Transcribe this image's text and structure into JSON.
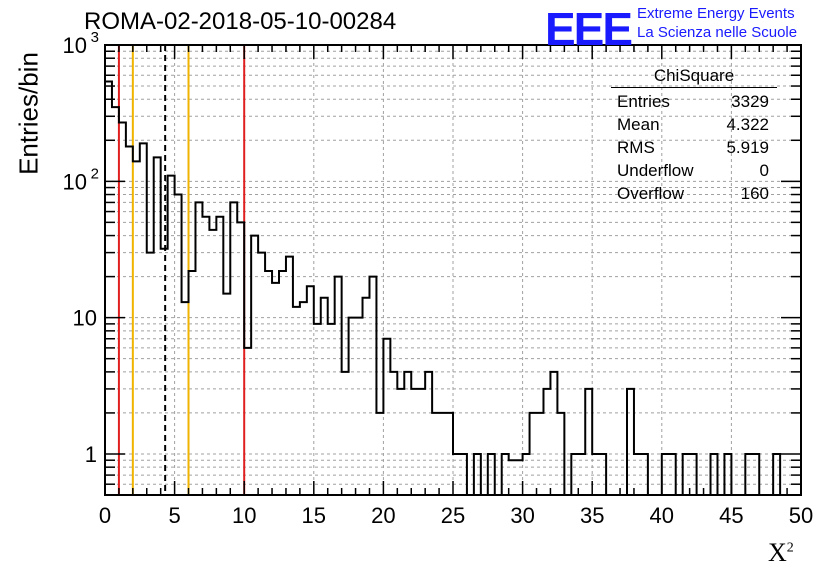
{
  "header": {
    "title": "ROMA-02-2018-05-10-00284",
    "logo": "EEE",
    "logo_line1": "Extreme Energy Events",
    "logo_line2": "La Scienza nelle Scuole"
  },
  "stats": {
    "title": "ChiSquare",
    "rows": [
      {
        "label": "Entries",
        "value": "3329"
      },
      {
        "label": "Mean",
        "value": "4.322"
      },
      {
        "label": "RMS",
        "value": "5.919"
      },
      {
        "label": "Underflow",
        "value": "0"
      },
      {
        "label": "Overflow",
        "value": "160"
      }
    ]
  },
  "chart_data": {
    "type": "histogram",
    "title": "ROMA-02-2018-05-10-00284",
    "xlabel": "X",
    "xlabel_sup": "2",
    "ylabel": "Entries/bin",
    "xlim": [
      0,
      50
    ],
    "ylim": [
      0.5,
      1000
    ],
    "yscale": "log",
    "grid": true,
    "bin_width": 0.5,
    "x_ticks": [
      "0",
      "5",
      "10",
      "15",
      "20",
      "25",
      "30",
      "35",
      "40",
      "45",
      "50"
    ],
    "y_ticks": [
      {
        "value": 1,
        "label": "1"
      },
      {
        "value": 10,
        "label": "10"
      },
      {
        "value": 100,
        "label": "10",
        "sup": "2"
      },
      {
        "value": 1000,
        "label": "10",
        "sup": "3"
      }
    ],
    "counts": [
      540,
      350,
      270,
      180,
      140,
      190,
      30,
      150,
      32,
      110,
      80,
      13,
      22,
      70,
      55,
      44,
      55,
      15,
      70,
      50,
      6,
      40,
      30,
      22,
      18,
      22,
      28,
      12,
      13,
      17,
      9,
      14,
      9,
      20,
      4,
      10,
      10,
      14,
      20,
      2,
      7,
      4,
      3,
      4,
      3,
      3,
      4,
      2,
      2,
      2,
      1,
      1,
      0,
      1,
      0,
      1,
      0,
      1,
      0.9,
      0.9,
      1,
      2,
      2,
      3,
      4,
      2,
      0,
      1,
      1,
      3,
      1,
      1,
      0,
      0,
      0,
      3,
      1,
      1,
      0,
      0,
      1,
      1,
      0,
      1,
      1,
      0,
      0,
      1,
      0,
      1,
      0,
      0,
      1,
      1,
      0,
      0,
      1
    ],
    "vertical_lines": [
      {
        "x": 1,
        "color": "#e02020",
        "style": "solid"
      },
      {
        "x": 2,
        "color": "#f0b400",
        "style": "solid"
      },
      {
        "x": 4.322,
        "color": "#000000",
        "style": "dashed"
      },
      {
        "x": 6,
        "color": "#f0b400",
        "style": "solid"
      },
      {
        "x": 10,
        "color": "#e02020",
        "style": "solid"
      }
    ]
  }
}
